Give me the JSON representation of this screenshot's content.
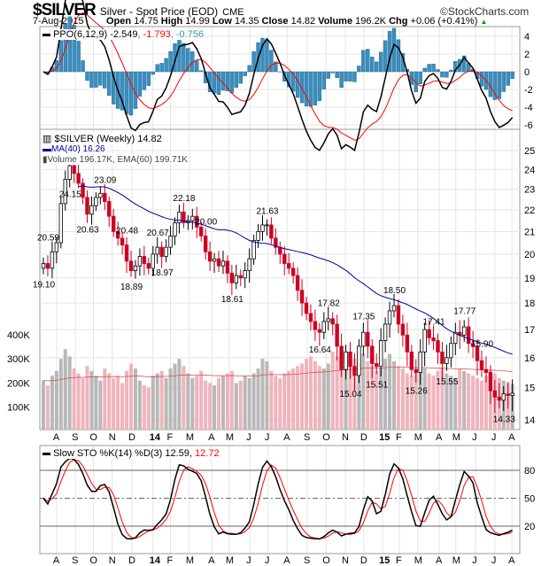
{
  "header": {
    "symbol": "$SILVER",
    "name": "Silver - Spot Price (EOD)",
    "exchange": "CME",
    "brand": "©StockCharts.com",
    "date": "7-Aug-2015",
    "open_label": "Open",
    "open": "14.75",
    "high_label": "High",
    "high": "14.99",
    "low_label": "Low",
    "low": "14.35",
    "close_label": "Close",
    "close": "14.82",
    "volume_label": "Volume",
    "volume": "196.2K",
    "chg_label": "Chg",
    "chg": "+0.06 (+0.41%)"
  },
  "legends": {
    "ppo": "PPO(6,12,9) -2.549",
    "ppo_sig": ", -1.793",
    "ppo_hist": ", -0.756",
    "price": "$SILVER (Weekly) 14.82",
    "ma": "MA(40) 16.26",
    "vol": "Volume 196.17K, EMA(60) 199.71K",
    "sto": "Slow STO %K(14) %D(3) 12.59,",
    "sto_d": " 12.72"
  },
  "colors": {
    "up": "#000000",
    "down": "#cc0022",
    "ma": "#000099",
    "ppo_hist": "#3a8fc0",
    "vol_up": "#b8b8b8",
    "vol_down": "#f0b4bc",
    "signal": "#ff0000"
  },
  "chart_data": {
    "type": "candlestick",
    "scale": "log",
    "ylim": [
      14,
      25
    ],
    "price_ticks": [
      "25",
      "24",
      "23",
      "22",
      "21",
      "20",
      "19",
      "18",
      "17",
      "16",
      "15",
      "14"
    ],
    "volume_ticks": [
      "400K",
      "300K",
      "200K",
      "100K"
    ],
    "ppo_ticks": [
      "4",
      "2",
      "0",
      "-2",
      "-4",
      "-6"
    ],
    "sto_ticks": [
      "80",
      "50",
      "20"
    ],
    "months": [
      [
        "A",
        3
      ],
      [
        "S",
        7.3
      ],
      [
        "O",
        11.4
      ],
      [
        "N",
        15.7
      ],
      [
        "D",
        20.2
      ],
      [
        "14",
        25
      ],
      [
        "F",
        29
      ],
      [
        "M",
        33.3
      ],
      [
        "A",
        38.4
      ],
      [
        "M",
        42.4
      ],
      [
        "J",
        47.1
      ],
      [
        "J",
        51.3
      ],
      [
        "A",
        55.6
      ],
      [
        "S",
        60.2
      ],
      [
        "O",
        64.5
      ],
      [
        "N",
        68.9
      ],
      [
        "D",
        73.1
      ],
      [
        "15",
        77.4
      ],
      [
        "F",
        81.2
      ],
      [
        "M",
        85.4
      ],
      [
        "A",
        90.3
      ],
      [
        "M",
        94.1
      ],
      [
        "J",
        98.6
      ],
      [
        "J",
        103
      ],
      [
        "A",
        106.9
      ]
    ],
    "closes": [
      19.6,
      19.4,
      20.1,
      20.5,
      22.3,
      23.5,
      24.2,
      23.8,
      23.3,
      22.6,
      21.8,
      22.2,
      22.6,
      22.8,
      22.4,
      21.7,
      21.0,
      20.7,
      20.4,
      19.7,
      19.3,
      19.5,
      19.9,
      19.6,
      19.4,
      20.0,
      20.3,
      19.9,
      20.3,
      20.8,
      21.4,
      21.9,
      21.4,
      21.5,
      21.7,
      21.2,
      20.8,
      20.1,
      19.7,
      19.8,
      19.5,
      19.7,
      19.2,
      18.8,
      19.1,
      19.0,
      19.3,
      19.8,
      20.6,
      21.0,
      21.3,
      21.3,
      20.7,
      20.3,
      20.0,
      19.6,
      19.4,
      19.1,
      18.5,
      18.0,
      17.6,
      17.3,
      17.0,
      16.9,
      17.3,
      17.4,
      17.2,
      16.4,
      15.6,
      16.2,
      15.7,
      15.4,
      16.4,
      16.9,
      16.4,
      15.8,
      15.7,
      16.6,
      17.2,
      17.7,
      17.9,
      17.2,
      16.8,
      16.2,
      15.6,
      15.5,
      16.2,
      17.0,
      16.7,
      16.6,
      16.2,
      15.8,
      16.0,
      16.5,
      16.9,
      16.8,
      17.1,
      16.5,
      16.4,
      15.9,
      15.6,
      15.5,
      14.9,
      14.7,
      14.6,
      14.8,
      14.75,
      14.82
    ],
    "volumes_k": [
      210,
      190,
      230,
      250,
      300,
      340,
      310,
      260,
      240,
      220,
      270,
      250,
      230,
      210,
      260,
      240,
      220,
      230,
      200,
      250,
      280,
      260,
      210,
      190,
      180,
      230,
      240,
      250,
      220,
      260,
      280,
      300,
      270,
      240,
      220,
      230,
      250,
      210,
      200,
      190,
      220,
      230,
      240,
      250,
      200,
      210,
      230,
      220,
      240,
      260,
      300,
      290,
      250,
      230,
      220,
      240,
      250,
      260,
      270,
      280,
      300,
      310,
      290,
      270,
      260,
      280,
      330,
      310,
      300,
      290,
      280,
      300,
      340,
      320,
      290,
      270,
      250,
      260,
      300,
      320,
      290,
      270,
      260,
      240,
      230,
      250,
      270,
      260,
      240,
      230,
      250,
      260,
      240,
      230,
      220,
      260,
      250,
      240,
      230,
      220,
      210,
      230,
      250,
      240,
      220,
      210,
      205,
      196
    ],
    "annotations": [
      [
        "20.59",
        1,
        1
      ],
      [
        "19.10",
        0,
        0
      ],
      [
        "24.15",
        6,
        2
      ],
      [
        "20.63",
        10,
        0
      ],
      [
        "23.09",
        14,
        1
      ],
      [
        "20.48",
        19,
        1
      ],
      [
        "18.89",
        20,
        0
      ],
      [
        "20.67",
        26,
        1
      ],
      [
        "18.97",
        27,
        0
      ],
      [
        "22.18",
        32,
        1
      ],
      [
        "20.00",
        37,
        1
      ],
      [
        "18.61",
        43,
        0
      ],
      [
        "21.63",
        51,
        1
      ],
      [
        "17.82",
        65,
        1
      ],
      [
        "16.64",
        63,
        0
      ],
      [
        "15.04",
        70,
        0
      ],
      [
        "17.35",
        73,
        1
      ],
      [
        "15.51",
        76,
        0
      ],
      [
        "18.50",
        80,
        1
      ],
      [
        "15.26",
        85,
        0
      ],
      [
        "17.41",
        89,
        1
      ],
      [
        "15.55",
        92,
        0
      ],
      [
        "17.77",
        96,
        1
      ],
      [
        "15.90",
        100,
        1
      ],
      [
        "14.33",
        105,
        0
      ]
    ]
  }
}
